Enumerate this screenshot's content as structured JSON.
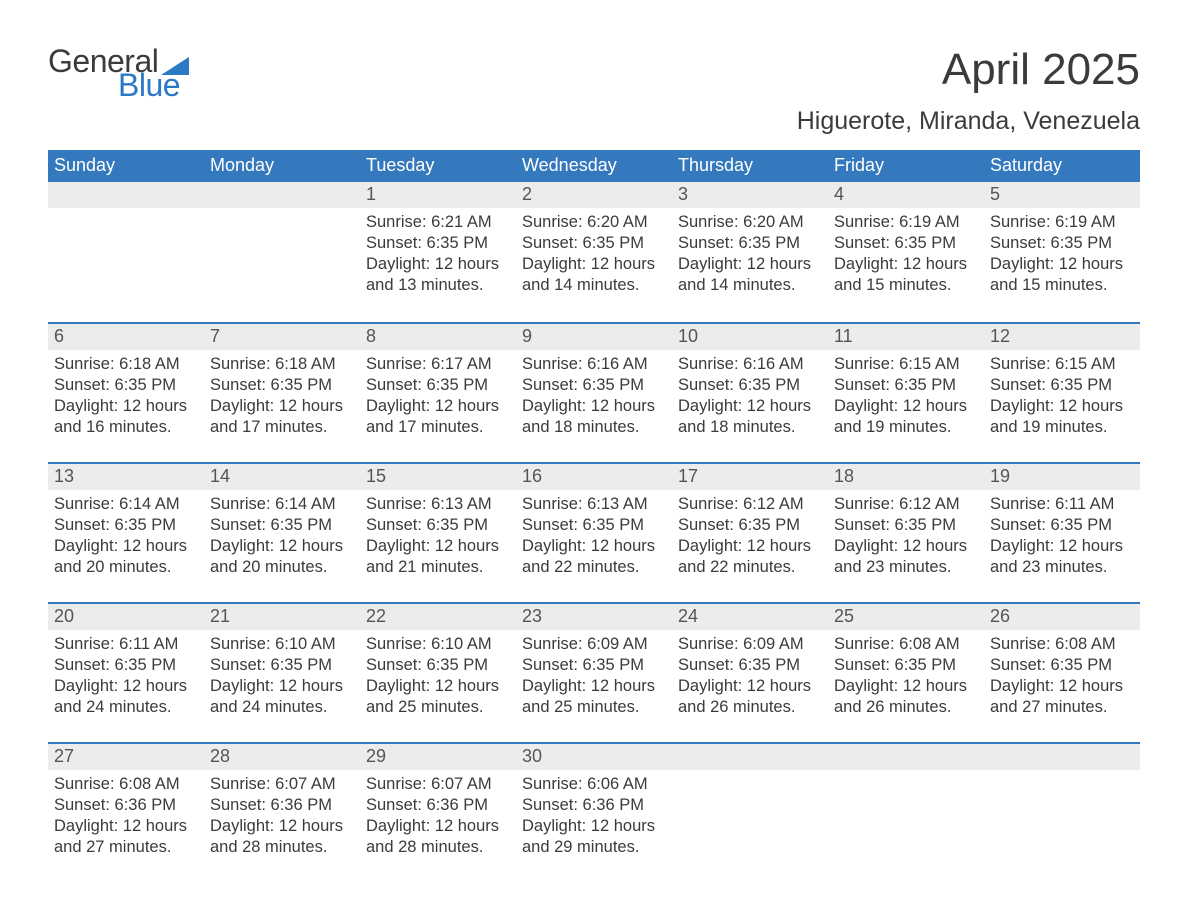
{
  "logo": {
    "general": "General",
    "blue": "Blue",
    "flag_color": "#2b78c5"
  },
  "title": "April 2025",
  "subtitle": "Higuerote, Miranda, Venezuela",
  "colors": {
    "header_bg": "#3478bd",
    "header_text": "#ffffff",
    "daynum_bg": "#ececec",
    "body_text": "#3b3b3b",
    "row_divider": "#3478bd"
  },
  "weekdays": [
    "Sunday",
    "Monday",
    "Tuesday",
    "Wednesday",
    "Thursday",
    "Friday",
    "Saturday"
  ],
  "weeks": [
    [
      {
        "num": "",
        "sunrise": "",
        "sunset": "",
        "daylight": ""
      },
      {
        "num": "",
        "sunrise": "",
        "sunset": "",
        "daylight": ""
      },
      {
        "num": "1",
        "sunrise": "Sunrise: 6:21 AM",
        "sunset": "Sunset: 6:35 PM",
        "daylight": "Daylight: 12 hours and 13 minutes."
      },
      {
        "num": "2",
        "sunrise": "Sunrise: 6:20 AM",
        "sunset": "Sunset: 6:35 PM",
        "daylight": "Daylight: 12 hours and 14 minutes."
      },
      {
        "num": "3",
        "sunrise": "Sunrise: 6:20 AM",
        "sunset": "Sunset: 6:35 PM",
        "daylight": "Daylight: 12 hours and 14 minutes."
      },
      {
        "num": "4",
        "sunrise": "Sunrise: 6:19 AM",
        "sunset": "Sunset: 6:35 PM",
        "daylight": "Daylight: 12 hours and 15 minutes."
      },
      {
        "num": "5",
        "sunrise": "Sunrise: 6:19 AM",
        "sunset": "Sunset: 6:35 PM",
        "daylight": "Daylight: 12 hours and 15 minutes."
      }
    ],
    [
      {
        "num": "6",
        "sunrise": "Sunrise: 6:18 AM",
        "sunset": "Sunset: 6:35 PM",
        "daylight": "Daylight: 12 hours and 16 minutes."
      },
      {
        "num": "7",
        "sunrise": "Sunrise: 6:18 AM",
        "sunset": "Sunset: 6:35 PM",
        "daylight": "Daylight: 12 hours and 17 minutes."
      },
      {
        "num": "8",
        "sunrise": "Sunrise: 6:17 AM",
        "sunset": "Sunset: 6:35 PM",
        "daylight": "Daylight: 12 hours and 17 minutes."
      },
      {
        "num": "9",
        "sunrise": "Sunrise: 6:16 AM",
        "sunset": "Sunset: 6:35 PM",
        "daylight": "Daylight: 12 hours and 18 minutes."
      },
      {
        "num": "10",
        "sunrise": "Sunrise: 6:16 AM",
        "sunset": "Sunset: 6:35 PM",
        "daylight": "Daylight: 12 hours and 18 minutes."
      },
      {
        "num": "11",
        "sunrise": "Sunrise: 6:15 AM",
        "sunset": "Sunset: 6:35 PM",
        "daylight": "Daylight: 12 hours and 19 minutes."
      },
      {
        "num": "12",
        "sunrise": "Sunrise: 6:15 AM",
        "sunset": "Sunset: 6:35 PM",
        "daylight": "Daylight: 12 hours and 19 minutes."
      }
    ],
    [
      {
        "num": "13",
        "sunrise": "Sunrise: 6:14 AM",
        "sunset": "Sunset: 6:35 PM",
        "daylight": "Daylight: 12 hours and 20 minutes."
      },
      {
        "num": "14",
        "sunrise": "Sunrise: 6:14 AM",
        "sunset": "Sunset: 6:35 PM",
        "daylight": "Daylight: 12 hours and 20 minutes."
      },
      {
        "num": "15",
        "sunrise": "Sunrise: 6:13 AM",
        "sunset": "Sunset: 6:35 PM",
        "daylight": "Daylight: 12 hours and 21 minutes."
      },
      {
        "num": "16",
        "sunrise": "Sunrise: 6:13 AM",
        "sunset": "Sunset: 6:35 PM",
        "daylight": "Daylight: 12 hours and 22 minutes."
      },
      {
        "num": "17",
        "sunrise": "Sunrise: 6:12 AM",
        "sunset": "Sunset: 6:35 PM",
        "daylight": "Daylight: 12 hours and 22 minutes."
      },
      {
        "num": "18",
        "sunrise": "Sunrise: 6:12 AM",
        "sunset": "Sunset: 6:35 PM",
        "daylight": "Daylight: 12 hours and 23 minutes."
      },
      {
        "num": "19",
        "sunrise": "Sunrise: 6:11 AM",
        "sunset": "Sunset: 6:35 PM",
        "daylight": "Daylight: 12 hours and 23 minutes."
      }
    ],
    [
      {
        "num": "20",
        "sunrise": "Sunrise: 6:11 AM",
        "sunset": "Sunset: 6:35 PM",
        "daylight": "Daylight: 12 hours and 24 minutes."
      },
      {
        "num": "21",
        "sunrise": "Sunrise: 6:10 AM",
        "sunset": "Sunset: 6:35 PM",
        "daylight": "Daylight: 12 hours and 24 minutes."
      },
      {
        "num": "22",
        "sunrise": "Sunrise: 6:10 AM",
        "sunset": "Sunset: 6:35 PM",
        "daylight": "Daylight: 12 hours and 25 minutes."
      },
      {
        "num": "23",
        "sunrise": "Sunrise: 6:09 AM",
        "sunset": "Sunset: 6:35 PM",
        "daylight": "Daylight: 12 hours and 25 minutes."
      },
      {
        "num": "24",
        "sunrise": "Sunrise: 6:09 AM",
        "sunset": "Sunset: 6:35 PM",
        "daylight": "Daylight: 12 hours and 26 minutes."
      },
      {
        "num": "25",
        "sunrise": "Sunrise: 6:08 AM",
        "sunset": "Sunset: 6:35 PM",
        "daylight": "Daylight: 12 hours and 26 minutes."
      },
      {
        "num": "26",
        "sunrise": "Sunrise: 6:08 AM",
        "sunset": "Sunset: 6:35 PM",
        "daylight": "Daylight: 12 hours and 27 minutes."
      }
    ],
    [
      {
        "num": "27",
        "sunrise": "Sunrise: 6:08 AM",
        "sunset": "Sunset: 6:36 PM",
        "daylight": "Daylight: 12 hours and 27 minutes."
      },
      {
        "num": "28",
        "sunrise": "Sunrise: 6:07 AM",
        "sunset": "Sunset: 6:36 PM",
        "daylight": "Daylight: 12 hours and 28 minutes."
      },
      {
        "num": "29",
        "sunrise": "Sunrise: 6:07 AM",
        "sunset": "Sunset: 6:36 PM",
        "daylight": "Daylight: 12 hours and 28 minutes."
      },
      {
        "num": "30",
        "sunrise": "Sunrise: 6:06 AM",
        "sunset": "Sunset: 6:36 PM",
        "daylight": "Daylight: 12 hours and 29 minutes."
      },
      {
        "num": "",
        "sunrise": "",
        "sunset": "",
        "daylight": ""
      },
      {
        "num": "",
        "sunrise": "",
        "sunset": "",
        "daylight": ""
      },
      {
        "num": "",
        "sunrise": "",
        "sunset": "",
        "daylight": ""
      }
    ]
  ]
}
